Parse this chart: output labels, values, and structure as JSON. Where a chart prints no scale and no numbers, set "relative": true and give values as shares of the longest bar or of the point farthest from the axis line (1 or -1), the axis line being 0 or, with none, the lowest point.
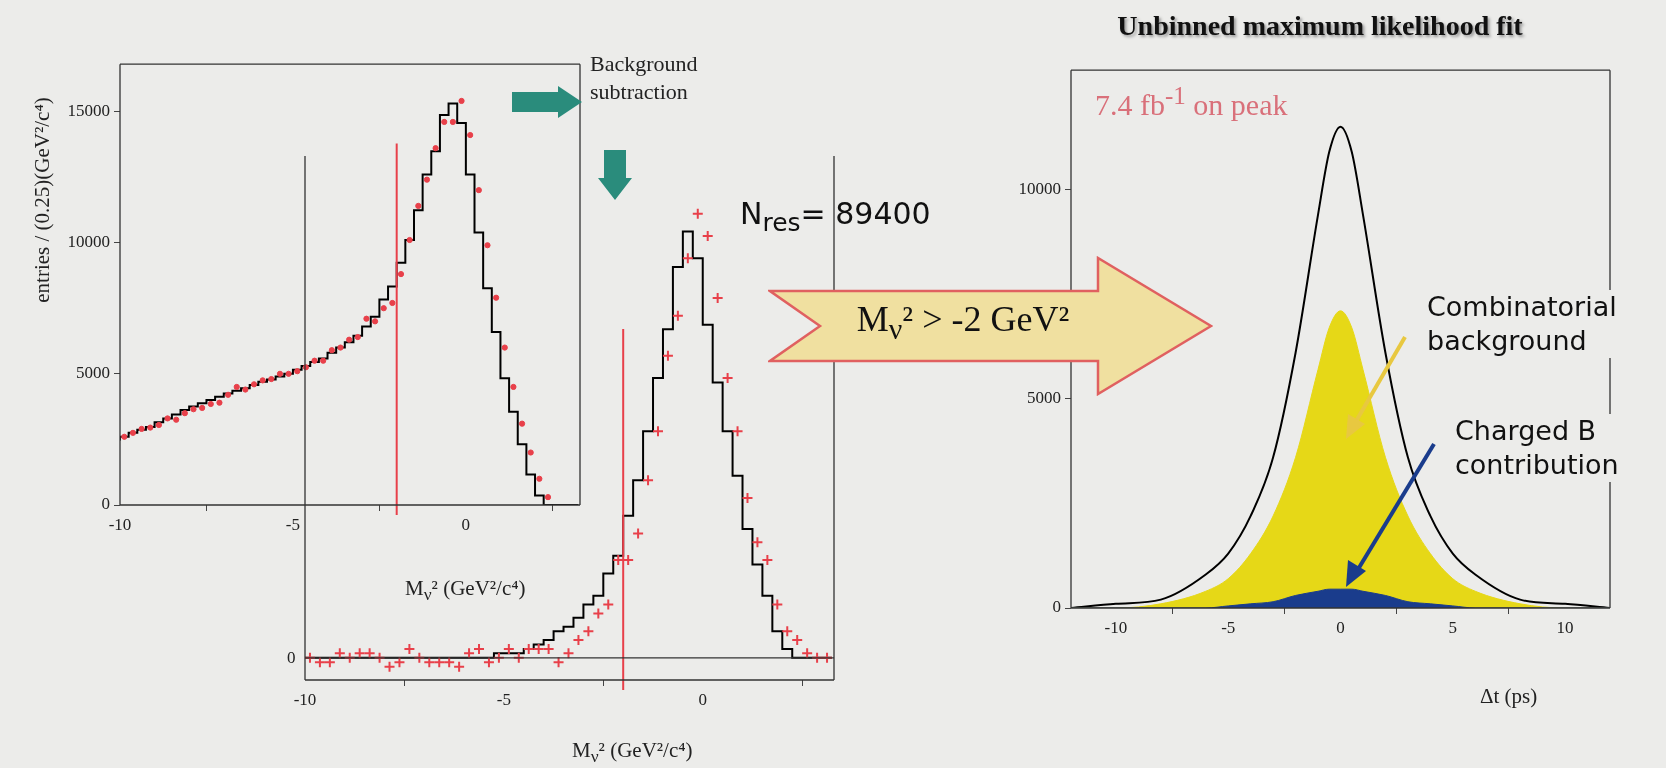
{
  "chart_data": [
    {
      "type": "step",
      "xlabel": "M$_{ν}$²   (GeV²/c⁴)",
      "ylabel": "entries / (0.25)(GeV²/c⁴)",
      "x": [
        -10,
        -9.75,
        -9.5,
        -9.25,
        -9,
        -8.75,
        -8.5,
        -8.25,
        -8,
        -7.75,
        -7.5,
        -7.25,
        -7,
        -6.75,
        -6.5,
        -6.25,
        -6,
        -5.75,
        -5.5,
        -5.25,
        -5,
        -4.75,
        -4.5,
        -4.25,
        -4,
        -3.75,
        -3.5,
        -3.25,
        -3,
        -2.75,
        -2.5,
        -2.25,
        -2,
        -1.75,
        -1.5,
        -1.25,
        -1,
        -0.75,
        -0.5,
        -0.25,
        0,
        0.25,
        0.5,
        0.75,
        1,
        1.25,
        1.5,
        1.75,
        2,
        2.25,
        2.5,
        2.75,
        3,
        3.25
      ],
      "values": [
        2460,
        2600,
        2750,
        2870,
        2970,
        3150,
        3300,
        3450,
        3620,
        3750,
        3880,
        4000,
        4130,
        4250,
        4350,
        4450,
        4570,
        4700,
        4780,
        4900,
        5000,
        5150,
        5300,
        5450,
        5580,
        5800,
        6000,
        6200,
        6450,
        6800,
        7170,
        7830,
        8330,
        9230,
        10100,
        11230,
        12600,
        13480,
        14860,
        15300,
        14560,
        12600,
        10390,
        8260,
        6590,
        4830,
        3550,
        2320,
        1160,
        360,
        0,
        0,
        0,
        0
      ],
      "color": "#000000",
      "series": [
        {
          "type": "scatter",
          "marker": "circle",
          "color": "#e8404a",
          "x": [
            -9.875,
            -9.625,
            -9.375,
            -9.125,
            -8.875,
            -8.625,
            -8.375,
            -8.125,
            -7.875,
            -7.625,
            -7.375,
            -7.125,
            -6.875,
            -6.625,
            -6.375,
            -6.125,
            -5.875,
            -5.625,
            -5.375,
            -5.125,
            -4.875,
            -4.625,
            -4.375,
            -4.125,
            -3.875,
            -3.625,
            -3.375,
            -3.125,
            -2.875,
            -2.625,
            -2.375,
            -2.125,
            -1.875,
            -1.625,
            -1.375,
            -1.125,
            -0.875,
            -0.625,
            -0.375,
            -0.125,
            0.125,
            0.375,
            0.625,
            0.875,
            1.125,
            1.375,
            1.625,
            1.875,
            2.125,
            2.375
          ],
          "values": [
            2600,
            2750,
            2900,
            2950,
            3050,
            3300,
            3250,
            3500,
            3650,
            3700,
            3850,
            3900,
            4200,
            4500,
            4400,
            4600,
            4750,
            4800,
            5000,
            5000,
            5100,
            5250,
            5500,
            5500,
            5900,
            6000,
            6300,
            6400,
            7100,
            7000,
            7500,
            7700,
            8800,
            10100,
            11400,
            12400,
            13600,
            14600,
            14600,
            15400,
            14100,
            12000,
            9900,
            7900,
            6000,
            4500,
            3100,
            2000,
            1000,
            300
          ]
        }
      ],
      "xlim": [
        -10,
        3.3
      ],
      "xticks": [
        -10,
        -5,
        0
      ],
      "ylim": [
        0,
        16800
      ],
      "yticks": [
        0,
        5000,
        10000,
        15000
      ],
      "ref_lines": [
        {
          "axis": "x",
          "value": -2,
          "color": "#e8404a"
        }
      ]
    },
    {
      "type": "step",
      "relative": true,
      "xlabel": "M$_{ν}$²   (GeV²/c⁴)",
      "x": [
        -10,
        -9.75,
        -9.5,
        -9.25,
        -9,
        -8.75,
        -8.5,
        -8.25,
        -8,
        -7.75,
        -7.5,
        -7.25,
        -7,
        -6.75,
        -6.5,
        -6.25,
        -6,
        -5.75,
        -5.5,
        -5.25,
        -5,
        -4.75,
        -4.5,
        -4.25,
        -4,
        -3.75,
        -3.5,
        -3.25,
        -3,
        -2.75,
        -2.5,
        -2.25,
        -2,
        -1.75,
        -1.5,
        -1.25,
        -1,
        -0.75,
        -0.5,
        -0.25,
        0,
        0.25,
        0.5,
        0.75,
        1,
        1.25,
        1.5,
        1.75,
        2,
        2.25,
        2.5,
        2.75,
        3,
        3.25
      ],
      "values": [
        0,
        0,
        0,
        0,
        0,
        0,
        0,
        0,
        0,
        0,
        0,
        0,
        0,
        0,
        0,
        0,
        0,
        0,
        0,
        0,
        0.01,
        0.01,
        0.01,
        0.02,
        0.03,
        0.04,
        0.06,
        0.07,
        0.09,
        0.12,
        0.14,
        0.19,
        0.23,
        0.32,
        0.4,
        0.51,
        0.63,
        0.74,
        0.88,
        0.96,
        0.9,
        0.75,
        0.62,
        0.51,
        0.41,
        0.29,
        0.21,
        0.14,
        0.06,
        0.02,
        0,
        0,
        0,
        0
      ],
      "color": "#000000",
      "series": [
        {
          "type": "scatter",
          "marker": "cross",
          "color": "#e8404a",
          "x": [
            -9.875,
            -9.625,
            -9.375,
            -9.125,
            -8.875,
            -8.625,
            -8.375,
            -8.125,
            -7.875,
            -7.625,
            -7.375,
            -7.125,
            -6.875,
            -6.625,
            -6.375,
            -6.125,
            -5.875,
            -5.625,
            -5.375,
            -5.125,
            -4.875,
            -4.625,
            -4.375,
            -4.125,
            -3.875,
            -3.625,
            -3.375,
            -3.125,
            -2.875,
            -2.625,
            -2.375,
            -2.125,
            -1.875,
            -1.625,
            -1.375,
            -1.125,
            -0.875,
            -0.625,
            -0.375,
            -0.125,
            0.125,
            0.375,
            0.625,
            0.875,
            1.125,
            1.375,
            1.625,
            1.875,
            2.125,
            2.375,
            2.625,
            2.875,
            3.125
          ],
          "values": [
            0,
            -0.01,
            -0.01,
            0.01,
            0,
            0.01,
            0.01,
            0,
            -0.02,
            -0.01,
            0.02,
            0,
            -0.01,
            -0.01,
            -0.01,
            -0.02,
            0.01,
            0.02,
            -0.01,
            0,
            0.02,
            0,
            0.02,
            0.02,
            0.02,
            -0.01,
            0.01,
            0.04,
            0.06,
            0.1,
            0.12,
            0.22,
            0.22,
            0.28,
            0.4,
            0.51,
            0.68,
            0.77,
            0.9,
            1,
            0.95,
            0.81,
            0.63,
            0.51,
            0.36,
            0.26,
            0.22,
            0.12,
            0.06,
            0.04,
            0.01,
            0,
            0
          ]
        }
      ],
      "xlim": [
        -10,
        3.3
      ],
      "xticks": [
        -10,
        -5,
        0
      ],
      "ref_lines": [
        {
          "axis": "x",
          "value": -2,
          "color": "#e8404a"
        }
      ],
      "annotations": [
        "N$_{res}$= 89400",
        "Background subtraction",
        "0"
      ]
    },
    {
      "type": "line",
      "title": "Unbinned maximum likelihood fit",
      "xlabel": "Δt  (ps)",
      "x": [
        -12,
        -10,
        -8,
        -6,
        -5,
        -4,
        -3,
        -2,
        -1,
        -0.5,
        0,
        0.5,
        1,
        2,
        3,
        4,
        5,
        6,
        8,
        10,
        12
      ],
      "series": [
        {
          "color": "#000000",
          "values": [
            0,
            100,
            200,
            800,
            1300,
            2200,
            3600,
            6100,
            9400,
            10900,
            11500,
            10900,
            9400,
            6100,
            3600,
            2200,
            1300,
            800,
            200,
            100,
            0
          ]
        },
        {
          "type": "area",
          "color": "#e6d817",
          "values": [
            0,
            0,
            100,
            400,
            700,
            1300,
            2200,
            3600,
            5700,
            6700,
            7100,
            6700,
            5700,
            3600,
            2200,
            1300,
            700,
            400,
            100,
            0,
            0
          ]
        },
        {
          "type": "area",
          "color": "#1a3c8c",
          "values": [
            0,
            0,
            0,
            0,
            50,
            100,
            150,
            300,
            400,
            450,
            450,
            450,
            400,
            300,
            150,
            100,
            50,
            0,
            0,
            0,
            0
          ]
        }
      ],
      "marker": "none",
      "xlim": [
        -12,
        12
      ],
      "xticks": [
        -10,
        -5,
        0,
        5,
        10
      ],
      "ylim": [
        0,
        12850
      ],
      "yticks": [
        0,
        5000,
        10000
      ],
      "annotations": [
        "M$_{ν}$² > -2 GeV²",
        "7.4 fb$^{-1}$ on peak",
        "Combinatorial background",
        "Charged B contribution"
      ]
    }
  ]
}
